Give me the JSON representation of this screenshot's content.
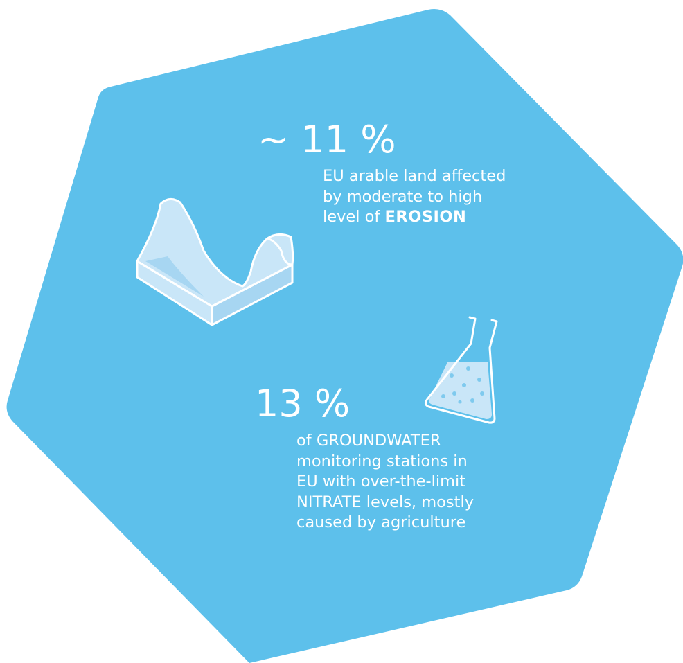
{
  "colors": {
    "background": "#ffffff",
    "hexagon": "#5dc0eb",
    "icon_fill": "#c9e6f8",
    "icon_shade": "#a7d6f2",
    "icon_stroke": "#ffffff",
    "dot": "#7fcaee",
    "text": "#ffffff"
  },
  "stats": {
    "erosion": {
      "value": "~ 11 %",
      "line1": "EU arable land affected",
      "line2": "by moderate to high",
      "line3_prefix": "level of ",
      "line3_bold": "EROSION",
      "icon": "soil-block-icon"
    },
    "nitrate": {
      "value": "13 %",
      "line1": "of GROUNDWATER",
      "line2": "monitoring stations in",
      "line3": "EU with over-the-limit",
      "line4": "NITRATE levels, mostly",
      "line5": "caused by agriculture",
      "icon": "lab-flask-icon"
    }
  }
}
